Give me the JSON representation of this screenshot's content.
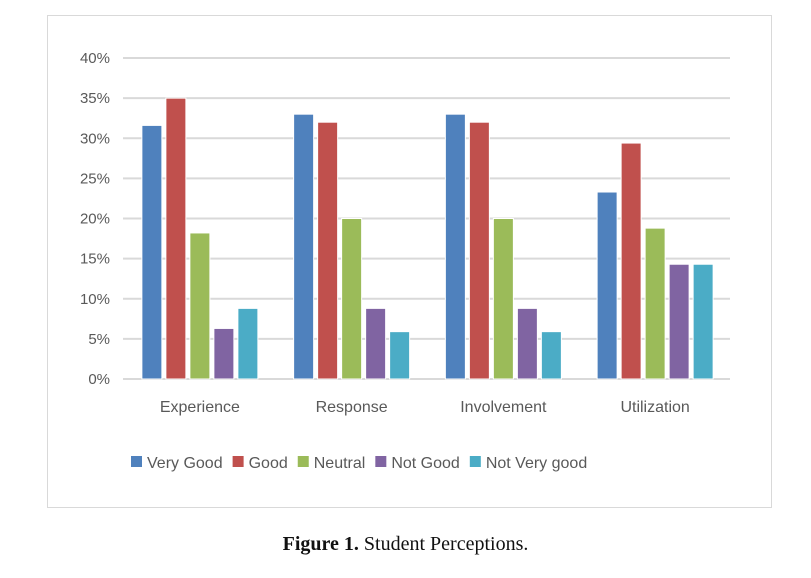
{
  "chart_data": {
    "type": "bar",
    "title": "",
    "xlabel": "",
    "ylabel": "",
    "ylim": [
      0,
      40
    ],
    "yticks": [
      "0%",
      "5%",
      "10%",
      "15%",
      "20%",
      "25%",
      "30%",
      "35%",
      "40%"
    ],
    "grid": true,
    "legend_placement": "bottom",
    "categories": [
      "Experience",
      "Response",
      "Involvement",
      "Utilization"
    ],
    "series": [
      {
        "name": "Very Good",
        "color": "#4f81bd",
        "values": [
          31.6,
          33,
          33,
          23.3
        ]
      },
      {
        "name": "Good",
        "color": "#c0504d",
        "values": [
          35,
          32,
          32,
          29.4
        ]
      },
      {
        "name": "Neutral",
        "color": "#9bbb59",
        "values": [
          18.2,
          20,
          20,
          18.8
        ]
      },
      {
        "name": "Not Good",
        "color": "#8064a2",
        "values": [
          6.3,
          8.8,
          8.8,
          14.3
        ]
      },
      {
        "name": "Not Very good",
        "color": "#4bacc6",
        "values": [
          8.8,
          5.9,
          5.9,
          14.3
        ]
      }
    ]
  },
  "caption": {
    "label": "Figure 1.",
    "text": " Student Perceptions."
  }
}
